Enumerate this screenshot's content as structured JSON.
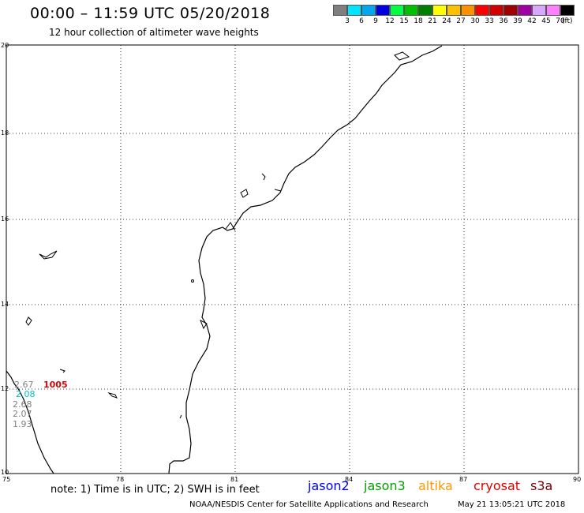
{
  "header": {
    "title": "00:00 – 11:59 UTC 05/20/2018",
    "subtitle": "12 hour collection of altimeter wave heights"
  },
  "legend": {
    "colors": [
      "#7f7f7f",
      "#00e5ff",
      "#00a8f0",
      "#0000e0",
      "#00ff40",
      "#00c000",
      "#008000",
      "#ffff00",
      "#ffc000",
      "#ff9000",
      "#ff0000",
      "#d00000",
      "#a00000",
      "#a000a0",
      "#d8a8ff",
      "#ff80ff",
      "#000000"
    ],
    "labels": [
      "3",
      "6",
      "9",
      "12",
      "15",
      "18",
      "21",
      "24",
      "27",
      "30",
      "33",
      "36",
      "39",
      "42",
      "45",
      "70"
    ],
    "unit": "(ft)"
  },
  "axes": {
    "x_ticks": [
      "75",
      "78",
      "81",
      "84",
      "87",
      "90"
    ],
    "y_ticks": [
      "20",
      "18",
      "16",
      "14",
      "12",
      "10"
    ]
  },
  "observations": {
    "values": [
      "2.67",
      "1005",
      "2.08",
      "2.68",
      "2.07",
      "1.93"
    ],
    "colors": [
      "#808080",
      "#e00000",
      "#00c0c0",
      "#808080",
      "#808080",
      "#808080"
    ]
  },
  "note": "note: 1) Time is in UTC; 2) SWH is in feet",
  "satellites": [
    {
      "name": "jason2",
      "color": "#0000ff"
    },
    {
      "name": "jason3",
      "color": "#00a000"
    },
    {
      "name": "altika",
      "color": "#ff9900"
    },
    {
      "name": "cryosat",
      "color": "#e00000"
    },
    {
      "name": "s3a",
      "color": "#800000"
    }
  ],
  "footer": {
    "credit": "NOAA/NESDIS Center for Satellite Applications and Research",
    "timestamp": "May 21 13:05:21 UTC 2018"
  }
}
